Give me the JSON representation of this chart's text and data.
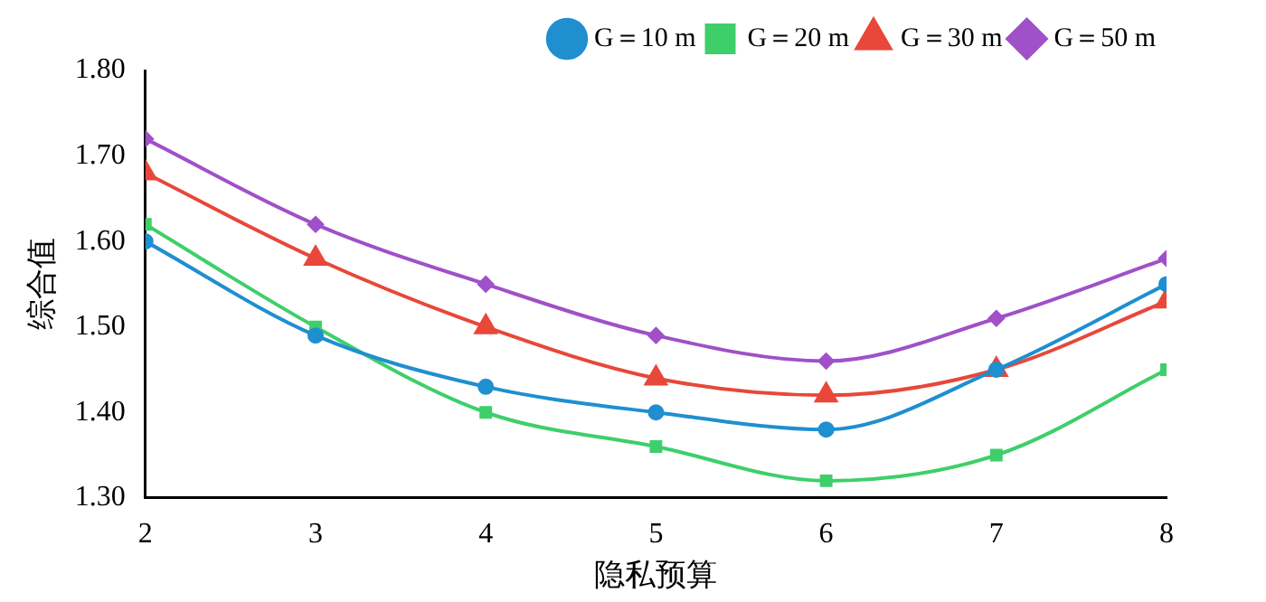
{
  "chart_data": {
    "type": "line",
    "xlabel": "隐私预算",
    "ylabel": "综合值",
    "x": [
      2,
      3,
      4,
      5,
      6,
      7,
      8
    ],
    "xlim": [
      2,
      8
    ],
    "xticks": [
      2,
      3,
      4,
      5,
      6,
      7,
      8
    ],
    "ylim": [
      1.3,
      1.8
    ],
    "yticks": [
      {
        "value": 1.3,
        "label": "1.30"
      },
      {
        "value": 1.4,
        "label": "1.40"
      },
      {
        "value": 1.5,
        "label": "1.50"
      },
      {
        "value": 1.6,
        "label": "1.60"
      },
      {
        "value": 1.7,
        "label": "1.70"
      },
      {
        "value": 1.8,
        "label": "1.80"
      }
    ],
    "grid": false,
    "legend": "top right",
    "line_style": "solid",
    "series": [
      {
        "name": "G＝10 m",
        "color": "#1f8fd0",
        "marker": "circle",
        "values": [
          1.6,
          1.49,
          1.43,
          1.4,
          1.38,
          1.45,
          1.55
        ]
      },
      {
        "name": "G＝20 m",
        "color": "#3ecf6a",
        "marker": "square",
        "values": [
          1.62,
          1.5,
          1.4,
          1.36,
          1.32,
          1.35,
          1.45
        ]
      },
      {
        "name": "G＝30 m",
        "color": "#e8473a",
        "marker": "triangle",
        "values": [
          1.68,
          1.58,
          1.5,
          1.44,
          1.42,
          1.45,
          1.53
        ]
      },
      {
        "name": "G＝50 m",
        "color": "#a050c8",
        "marker": "diamond",
        "values": [
          1.72,
          1.62,
          1.55,
          1.49,
          1.46,
          1.51,
          1.58
        ]
      }
    ]
  }
}
